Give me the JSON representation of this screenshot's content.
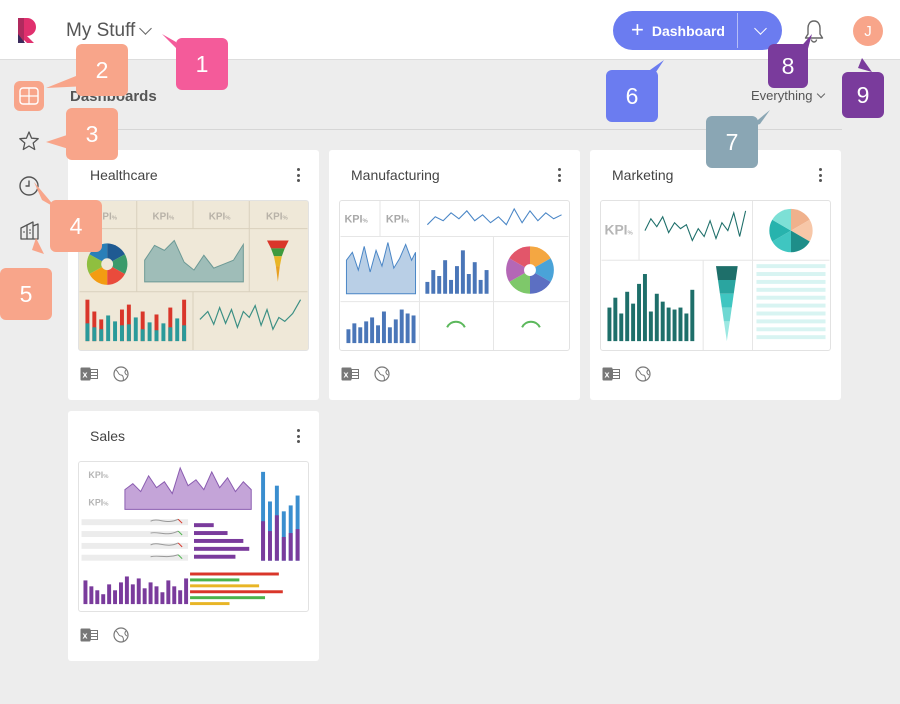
{
  "header": {
    "title": "My Stuff",
    "new_dashboard_label": "Dashboard",
    "user_initial": "J"
  },
  "content": {
    "heading": "Dashboards",
    "filter_label": "Everything"
  },
  "dashboards": [
    {
      "title": "Healthcare"
    },
    {
      "title": "Manufacturing"
    },
    {
      "title": "Marketing"
    },
    {
      "title": "Sales"
    }
  ],
  "thumbnails": {
    "kpi_text": "KPI",
    "kpi_suffix": "%"
  },
  "callouts": [
    "1",
    "2",
    "3",
    "4",
    "5",
    "6",
    "7",
    "8",
    "9"
  ],
  "colors": {
    "accent": "#6b7cf0",
    "callout_pink": "#f45b9a",
    "callout_salmon": "#f8a58a",
    "callout_blue": "#6b7cf0",
    "callout_gray": "#8aa6b4",
    "callout_purple": "#7a3b9c"
  },
  "icons": [
    "logo",
    "chevron-down-icon",
    "plus-icon",
    "bell-icon",
    "dashboards-icon",
    "star-icon",
    "clock-icon",
    "library-icon",
    "kebab-icon",
    "excel-icon",
    "globe-icon"
  ]
}
